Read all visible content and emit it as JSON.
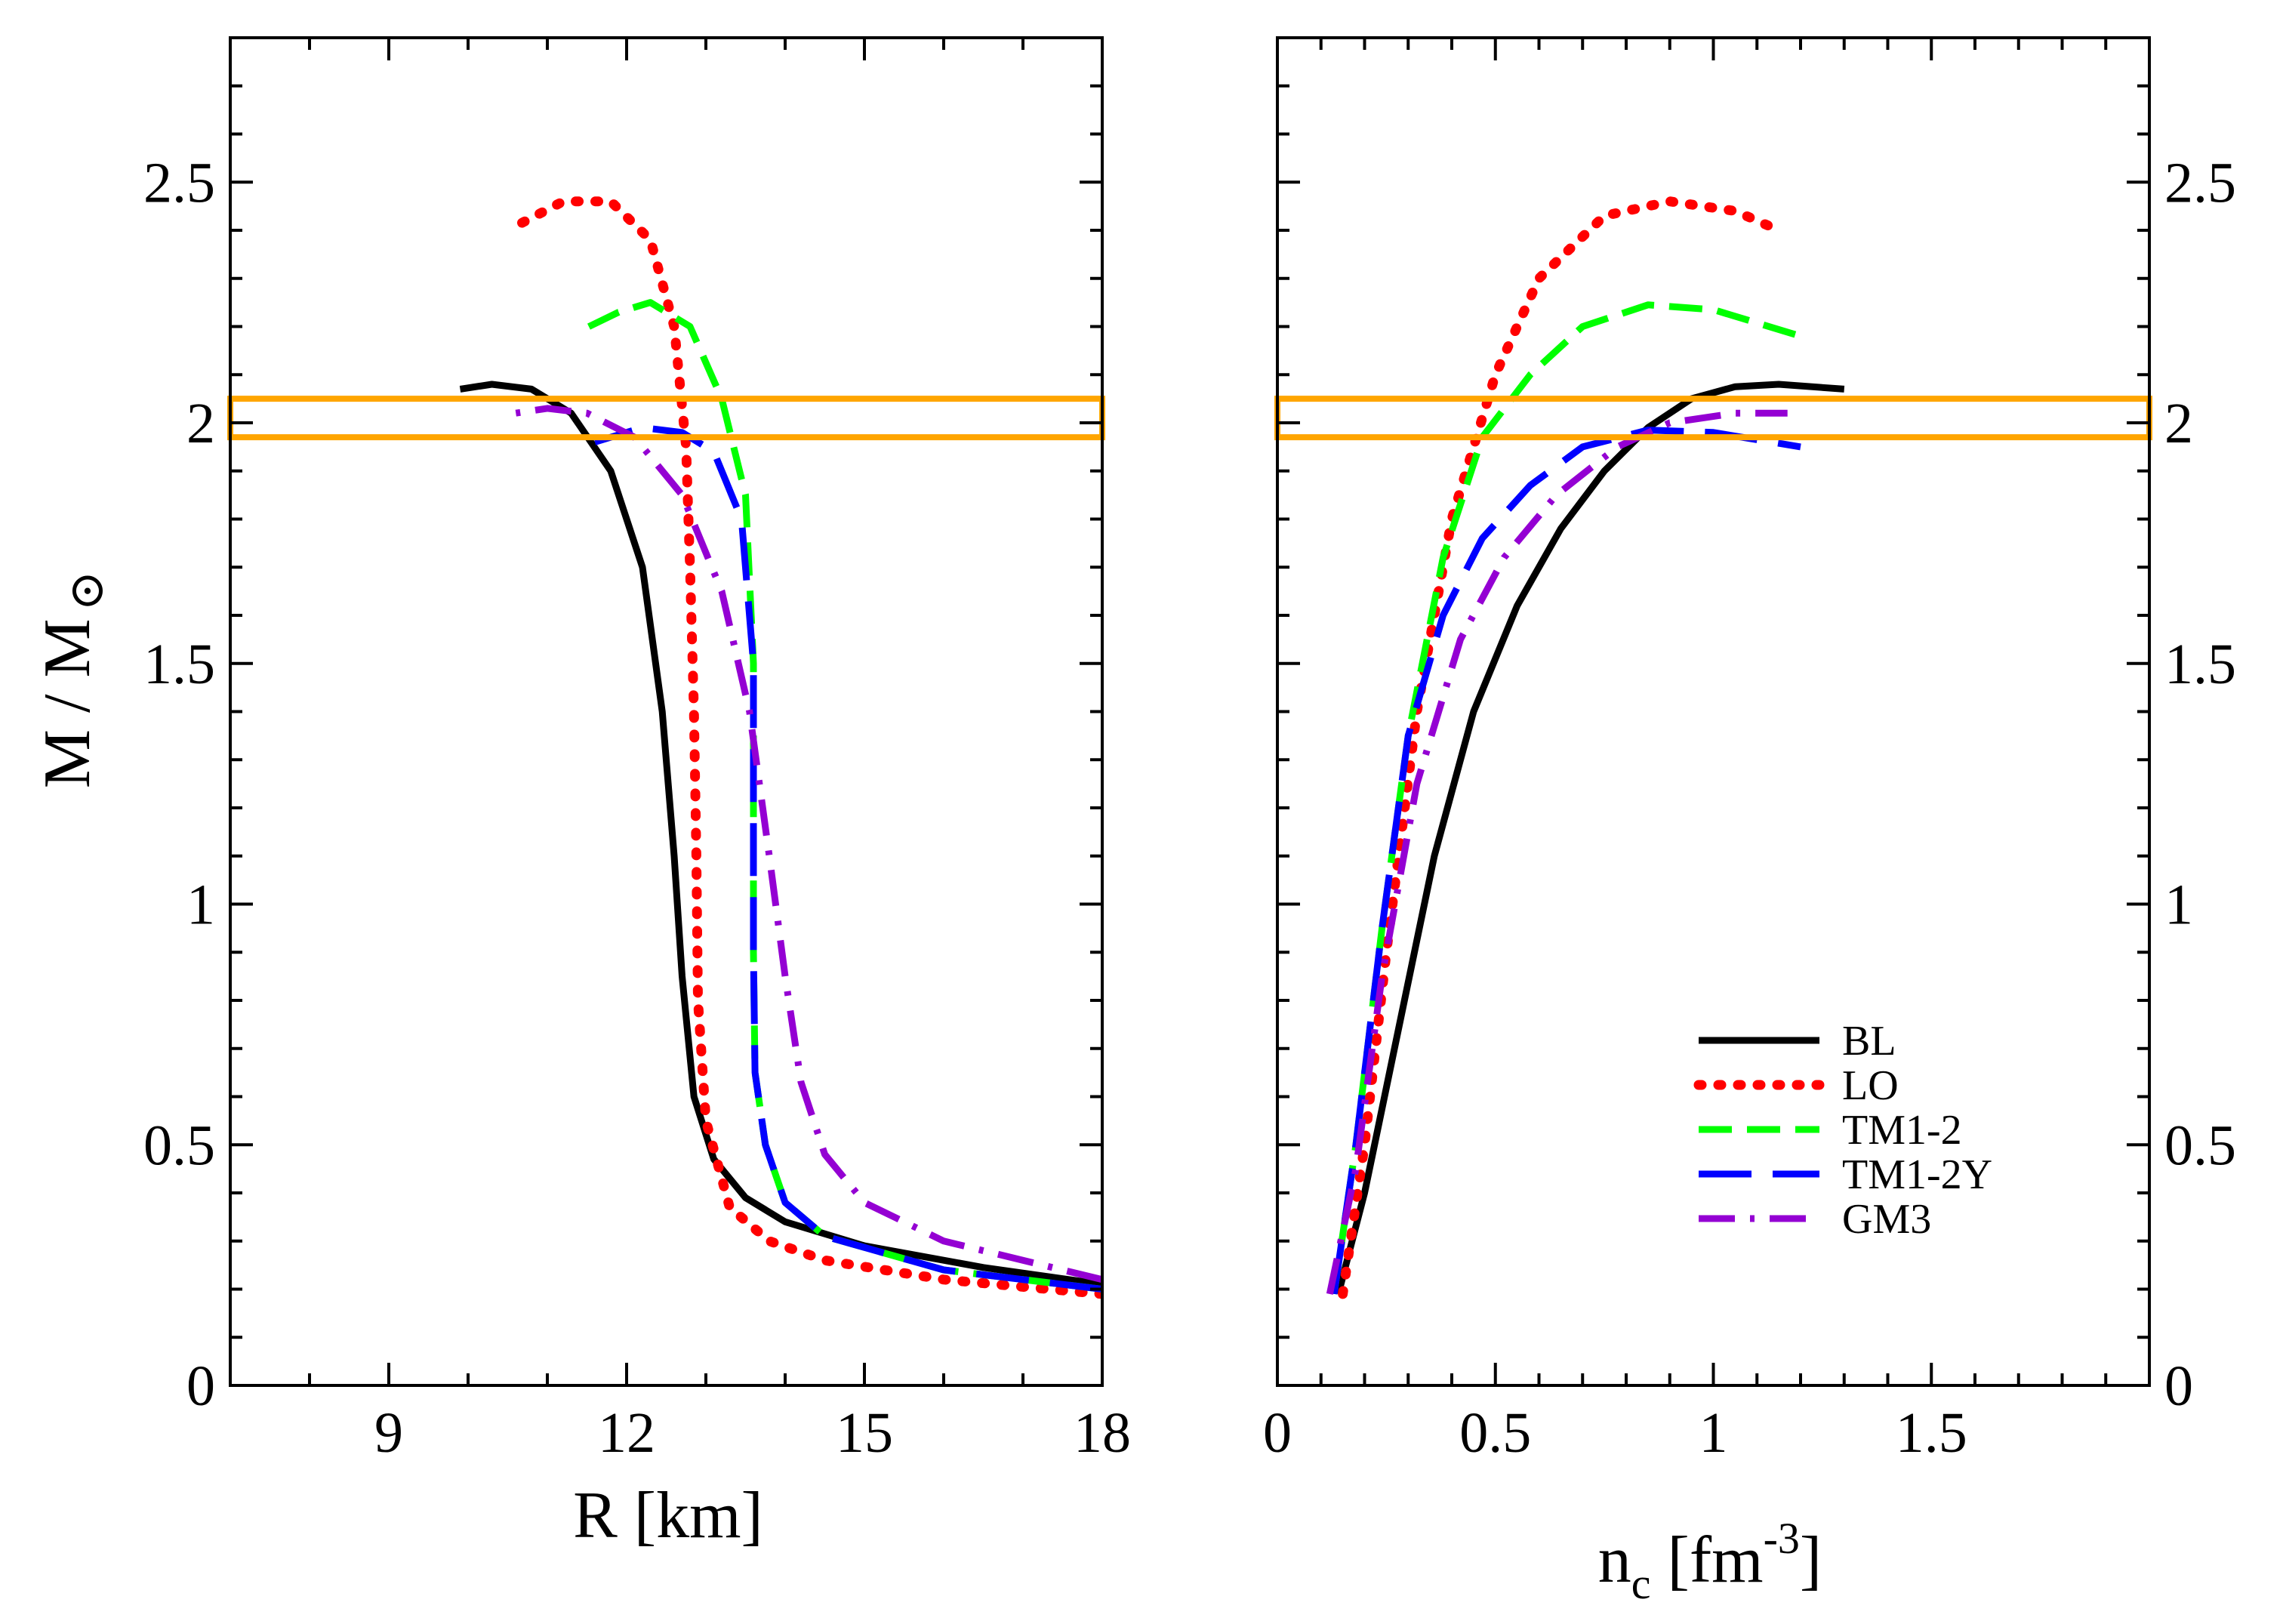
{
  "figure": {
    "y_axis_label": {
      "main": "M / M",
      "sun_symbol": "⊙"
    },
    "band": {
      "y_range": [
        1.97,
        2.05
      ],
      "color": "#ffa500"
    }
  },
  "chart_data": [
    {
      "type": "line",
      "panel": "left",
      "title": "",
      "xlabel": "R [km]",
      "ylabel": "M / M⊙",
      "xlim": [
        7,
        18
      ],
      "ylim": [
        0,
        2.8
      ],
      "x_ticks": [
        9,
        12,
        15,
        18
      ],
      "y_ticks": [
        0,
        0.5,
        1,
        1.5,
        2,
        2.5
      ],
      "x_tick_labels": [
        "9",
        "12",
        "15",
        "18"
      ],
      "y_tick_labels": [
        "0",
        "0.5",
        "1",
        "1.5",
        "2",
        "2.5"
      ],
      "grid": false,
      "series": [
        {
          "name": "BL",
          "color": "#000000",
          "style": "solid",
          "points": [
            [
              18.0,
              0.21
            ],
            [
              16.5,
              0.245
            ],
            [
              15.0,
              0.29
            ],
            [
              14.0,
              0.34
            ],
            [
              13.5,
              0.39
            ],
            [
              13.1,
              0.47
            ],
            [
              12.85,
              0.6
            ],
            [
              12.7,
              0.85
            ],
            [
              12.6,
              1.1
            ],
            [
              12.45,
              1.4
            ],
            [
              12.2,
              1.7
            ],
            [
              11.8,
              1.9
            ],
            [
              11.3,
              2.02
            ],
            [
              10.8,
              2.07
            ],
            [
              10.3,
              2.08
            ],
            [
              9.9,
              2.07
            ]
          ]
        },
        {
          "name": "LO",
          "color": "#ff0000",
          "style": "dotted",
          "points": [
            [
              18.0,
              0.19
            ],
            [
              16.0,
              0.22
            ],
            [
              14.5,
              0.26
            ],
            [
              13.8,
              0.3
            ],
            [
              13.3,
              0.37
            ],
            [
              13.0,
              0.55
            ],
            [
              12.9,
              0.8
            ],
            [
              12.88,
              1.1
            ],
            [
              12.85,
              1.4
            ],
            [
              12.8,
              1.7
            ],
            [
              12.75,
              1.95
            ],
            [
              12.6,
              2.2
            ],
            [
              12.3,
              2.38
            ],
            [
              11.8,
              2.46
            ],
            [
              11.2,
              2.46
            ],
            [
              10.5,
              2.4
            ]
          ]
        },
        {
          "name": "TM1-2",
          "color": "#00ff00",
          "style": "dashed",
          "points": [
            [
              18.0,
              0.2
            ],
            [
              16.0,
              0.24
            ],
            [
              14.5,
              0.31
            ],
            [
              14.0,
              0.38
            ],
            [
              13.75,
              0.5
            ],
            [
              13.62,
              0.65
            ],
            [
              13.6,
              0.9
            ],
            [
              13.6,
              1.2
            ],
            [
              13.6,
              1.5
            ],
            [
              13.5,
              1.85
            ],
            [
              13.2,
              2.05
            ],
            [
              12.8,
              2.2
            ],
            [
              12.3,
              2.25
            ],
            [
              11.9,
              2.23
            ],
            [
              11.4,
              2.19
            ]
          ]
        },
        {
          "name": "TM1-2Y",
          "color": "#0000ff",
          "style": "longdash",
          "points": [
            [
              18.0,
              0.2
            ],
            [
              16.0,
              0.24
            ],
            [
              14.5,
              0.31
            ],
            [
              14.0,
              0.38
            ],
            [
              13.75,
              0.5
            ],
            [
              13.62,
              0.65
            ],
            [
              13.6,
              0.9
            ],
            [
              13.6,
              1.2
            ],
            [
              13.6,
              1.5
            ],
            [
              13.45,
              1.8
            ],
            [
              13.1,
              1.94
            ],
            [
              12.7,
              1.98
            ],
            [
              12.2,
              1.99
            ],
            [
              11.6,
              1.96
            ]
          ]
        },
        {
          "name": "GM3",
          "color": "#9400d3",
          "style": "dashdot",
          "points": [
            [
              18.0,
              0.22
            ],
            [
              16.0,
              0.3
            ],
            [
              15.0,
              0.38
            ],
            [
              14.5,
              0.48
            ],
            [
              14.2,
              0.63
            ],
            [
              14.0,
              0.85
            ],
            [
              13.8,
              1.1
            ],
            [
              13.55,
              1.4
            ],
            [
              13.2,
              1.65
            ],
            [
              12.7,
              1.85
            ],
            [
              12.1,
              1.97
            ],
            [
              11.5,
              2.02
            ],
            [
              11.0,
              2.03
            ],
            [
              10.6,
              2.02
            ]
          ]
        }
      ]
    },
    {
      "type": "line",
      "panel": "right",
      "title": "",
      "xlabel": "n",
      "xlabel_sub": "c",
      "xlabel_unit": " [fm",
      "xlabel_sup": "-3",
      "xlabel_close": "]",
      "xlim": [
        0,
        2
      ],
      "ylim": [
        0,
        2.8
      ],
      "x_ticks": [
        0,
        0.5,
        1,
        1.5
      ],
      "y_ticks": [
        0,
        0.5,
        1,
        1.5,
        2,
        2.5
      ],
      "x_tick_labels": [
        "0",
        "0.5",
        "1",
        "1.5"
      ],
      "y_tick_labels": [
        "0",
        "0.5",
        "1",
        "1.5",
        "2",
        "2.5"
      ],
      "grid": false,
      "legend_position": "bottom-right",
      "series": [
        {
          "name": "BL",
          "color": "#000000",
          "style": "solid",
          "points": [
            [
              0.14,
              0.19
            ],
            [
              0.2,
              0.4
            ],
            [
              0.28,
              0.75
            ],
            [
              0.36,
              1.1
            ],
            [
              0.45,
              1.4
            ],
            [
              0.55,
              1.62
            ],
            [
              0.65,
              1.78
            ],
            [
              0.75,
              1.9
            ],
            [
              0.85,
              1.99
            ],
            [
              0.95,
              2.05
            ],
            [
              1.05,
              2.075
            ],
            [
              1.15,
              2.08
            ],
            [
              1.3,
              2.07
            ]
          ]
        },
        {
          "name": "LO",
          "color": "#ff0000",
          "style": "dotted",
          "points": [
            [
              0.15,
              0.19
            ],
            [
              0.2,
              0.5
            ],
            [
              0.25,
              0.9
            ],
            [
              0.32,
              1.4
            ],
            [
              0.4,
              1.8
            ],
            [
              0.5,
              2.1
            ],
            [
              0.6,
              2.3
            ],
            [
              0.75,
              2.43
            ],
            [
              0.9,
              2.46
            ],
            [
              1.05,
              2.44
            ],
            [
              1.15,
              2.4
            ]
          ]
        },
        {
          "name": "TM1-2",
          "color": "#00ff00",
          "style": "dashed",
          "points": [
            [
              0.13,
              0.19
            ],
            [
              0.18,
              0.5
            ],
            [
              0.24,
              0.95
            ],
            [
              0.3,
              1.35
            ],
            [
              0.38,
              1.72
            ],
            [
              0.47,
              1.97
            ],
            [
              0.58,
              2.1
            ],
            [
              0.7,
              2.2
            ],
            [
              0.85,
              2.245
            ],
            [
              1.0,
              2.235
            ],
            [
              1.2,
              2.18
            ]
          ]
        },
        {
          "name": "TM1-2Y",
          "color": "#0000ff",
          "style": "longdash",
          "points": [
            [
              0.13,
              0.19
            ],
            [
              0.18,
              0.5
            ],
            [
              0.24,
              0.95
            ],
            [
              0.3,
              1.35
            ],
            [
              0.38,
              1.6
            ],
            [
              0.47,
              1.76
            ],
            [
              0.58,
              1.87
            ],
            [
              0.7,
              1.95
            ],
            [
              0.85,
              1.985
            ],
            [
              1.0,
              1.98
            ],
            [
              1.2,
              1.95
            ]
          ]
        },
        {
          "name": "GM3",
          "color": "#9400d3",
          "style": "dashdot",
          "points": [
            [
              0.12,
              0.19
            ],
            [
              0.18,
              0.45
            ],
            [
              0.24,
              0.85
            ],
            [
              0.32,
              1.25
            ],
            [
              0.42,
              1.55
            ],
            [
              0.52,
              1.72
            ],
            [
              0.64,
              1.85
            ],
            [
              0.78,
              1.95
            ],
            [
              0.9,
              2.0
            ],
            [
              1.05,
              2.02
            ],
            [
              1.17,
              2.02
            ]
          ]
        }
      ]
    }
  ]
}
